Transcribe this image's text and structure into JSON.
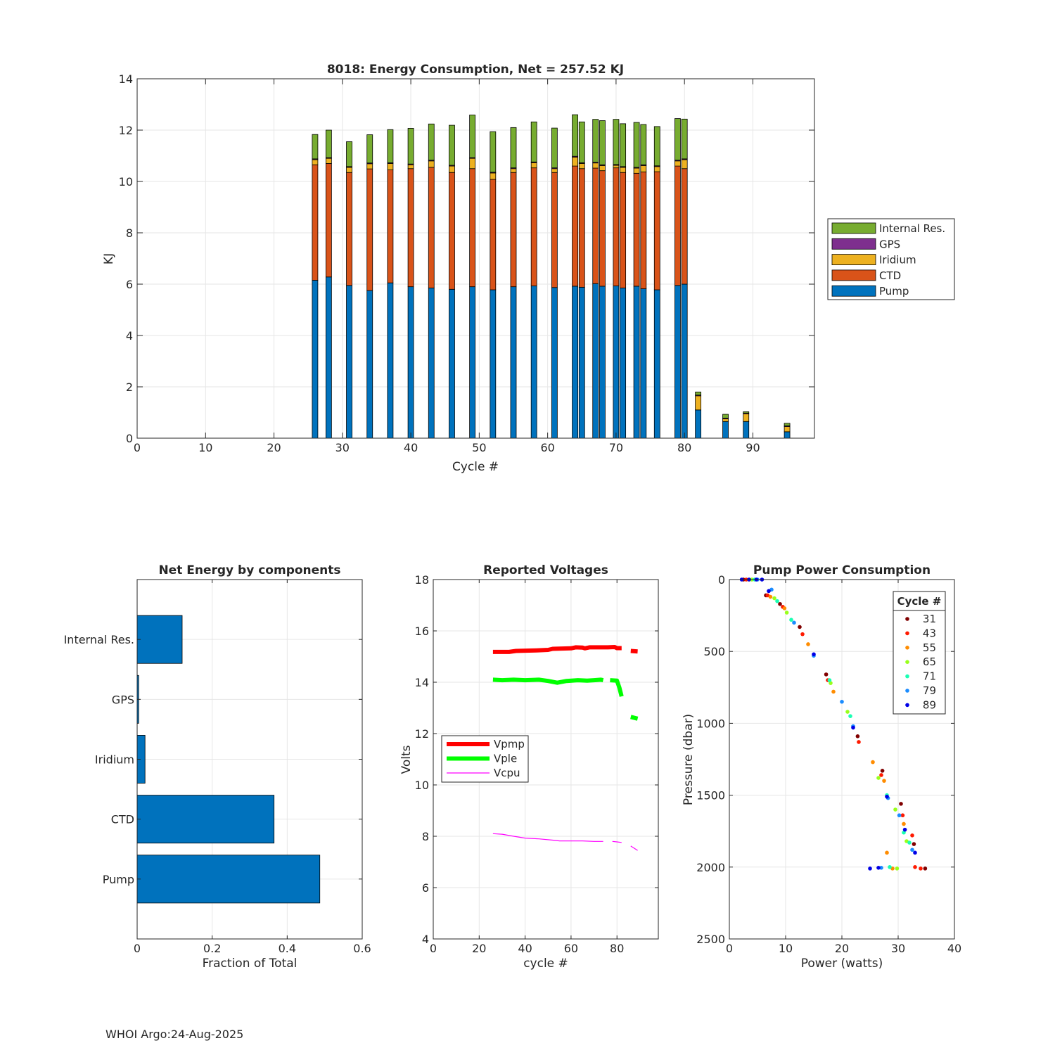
{
  "footer": "WHOI Argo:24-Aug-2025",
  "chart_data": [
    {
      "type": "bar",
      "stacked": true,
      "title": "8018: Energy Consumption,  Net = 257.52 KJ",
      "xlabel": "Cycle #",
      "ylabel": "KJ",
      "xlim": [
        0,
        99
      ],
      "ylim": [
        0,
        14
      ],
      "xticks": [
        0,
        10,
        20,
        30,
        40,
        50,
        60,
        70,
        80,
        90
      ],
      "yticks": [
        0,
        2,
        4,
        6,
        8,
        10,
        12,
        14
      ],
      "grid": true,
      "legend_position": "right",
      "legend_order": [
        "Internal Res.",
        "GPS",
        "Iridium",
        "CTD",
        "Pump"
      ],
      "cycles": [
        26,
        28,
        31,
        34,
        37,
        40,
        43,
        46,
        49,
        52,
        55,
        58,
        61,
        64,
        65,
        67,
        68,
        70,
        71,
        73,
        74,
        76,
        79,
        80,
        82,
        86,
        89,
        95
      ],
      "series": [
        {
          "name": "Pump",
          "color": "#0072BD",
          "values": [
            6.15,
            6.28,
            5.95,
            5.75,
            6.05,
            5.9,
            5.85,
            5.8,
            5.9,
            5.78,
            5.9,
            5.93,
            5.87,
            5.92,
            5.88,
            6.02,
            5.92,
            5.93,
            5.85,
            5.92,
            5.82,
            5.78,
            5.95,
            6.0,
            1.1,
            0.65,
            0.65,
            0.25
          ]
        },
        {
          "name": "CTD",
          "color": "#D95319",
          "values": [
            4.5,
            4.42,
            4.4,
            4.74,
            4.4,
            4.6,
            4.7,
            4.55,
            4.6,
            4.3,
            4.45,
            4.6,
            4.48,
            4.68,
            4.62,
            4.5,
            4.5,
            4.6,
            4.5,
            4.4,
            4.55,
            4.6,
            4.65,
            4.5,
            0.0,
            0.0,
            0.0,
            0.0
          ]
        },
        {
          "name": "Iridium",
          "color": "#EDB120",
          "values": [
            0.2,
            0.2,
            0.2,
            0.2,
            0.25,
            0.15,
            0.25,
            0.25,
            0.4,
            0.25,
            0.15,
            0.2,
            0.15,
            0.35,
            0.2,
            0.2,
            0.2,
            0.1,
            0.2,
            0.2,
            0.25,
            0.2,
            0.2,
            0.35,
            0.55,
            0.1,
            0.3,
            0.2
          ]
        },
        {
          "name": "GPS",
          "color": "#7E2F8E",
          "values": [
            0.03,
            0.03,
            0.03,
            0.03,
            0.03,
            0.03,
            0.03,
            0.03,
            0.03,
            0.03,
            0.03,
            0.03,
            0.03,
            0.03,
            0.03,
            0.03,
            0.03,
            0.03,
            0.03,
            0.03,
            0.03,
            0.03,
            0.03,
            0.03,
            0.03,
            0.03,
            0.03,
            0.03
          ]
        },
        {
          "name": "Internal Res.",
          "color": "#77AC30",
          "values": [
            0.95,
            1.07,
            0.97,
            1.1,
            1.29,
            1.39,
            1.41,
            1.56,
            1.66,
            1.58,
            1.57,
            1.56,
            1.55,
            1.62,
            1.59,
            1.67,
            1.72,
            1.76,
            1.67,
            1.75,
            1.57,
            1.53,
            1.62,
            1.55,
            0.12,
            0.15,
            0.05,
            0.1
          ]
        }
      ]
    },
    {
      "type": "bar",
      "orientation": "horizontal",
      "title": "Net Energy by components",
      "xlabel": "Fraction of Total",
      "xlim": [
        0,
        0.6
      ],
      "xticks": [
        0,
        0.2,
        0.4,
        0.6
      ],
      "grid": true,
      "color": "#0072BD",
      "categories": [
        "Internal Res.",
        "GPS",
        "Iridium",
        "CTD",
        "Pump"
      ],
      "values": [
        0.12,
        0.004,
        0.021,
        0.365,
        0.487
      ]
    },
    {
      "type": "line",
      "title": "Reported Voltages",
      "xlabel": "cycle #",
      "ylabel": "Volts",
      "xlim": [
        0,
        98
      ],
      "ylim": [
        4,
        18
      ],
      "xticks": [
        0,
        20,
        40,
        60,
        80
      ],
      "yticks": [
        4,
        6,
        8,
        10,
        12,
        14,
        16,
        18
      ],
      "grid": true,
      "legend_position": "middle-left",
      "series": [
        {
          "name": "Vpmp",
          "color": "#FF0000",
          "width": "thick",
          "segments": [
            [
              [
                26,
                15.18
              ],
              [
                33,
                15.18
              ],
              [
                36,
                15.22
              ],
              [
                45,
                15.24
              ],
              [
                50,
                15.26
              ],
              [
                52,
                15.3
              ],
              [
                60,
                15.32
              ],
              [
                62,
                15.36
              ],
              [
                65,
                15.35
              ],
              [
                66,
                15.32
              ],
              [
                68,
                15.36
              ],
              [
                72,
                15.36
              ],
              [
                76,
                15.36
              ],
              [
                79,
                15.37
              ],
              [
                80,
                15.33
              ],
              [
                82,
                15.33
              ]
            ],
            [
              [
                86,
                15.22
              ],
              [
                89,
                15.2
              ]
            ]
          ]
        },
        {
          "name": "Vple",
          "color": "#00FF00",
          "width": "thick",
          "segments": [
            [
              [
                26,
                14.1
              ],
              [
                30,
                14.08
              ],
              [
                35,
                14.1
              ],
              [
                40,
                14.08
              ],
              [
                46,
                14.1
              ],
              [
                50,
                14.05
              ],
              [
                54,
                13.98
              ],
              [
                58,
                14.05
              ],
              [
                63,
                14.08
              ],
              [
                67,
                14.06
              ],
              [
                70,
                14.08
              ],
              [
                73,
                14.1
              ],
              [
                74,
                14.08
              ]
            ],
            [
              [
                77,
                14.08
              ],
              [
                80,
                14.06
              ],
              [
                81,
                13.8
              ],
              [
                82,
                13.45
              ]
            ],
            [
              [
                86,
                12.65
              ],
              [
                89,
                12.58
              ]
            ]
          ]
        },
        {
          "name": "Vcpu",
          "color": "#FF00FF",
          "width": "thin",
          "segments": [
            [
              [
                26,
                8.1
              ],
              [
                30,
                8.08
              ],
              [
                35,
                8.0
              ],
              [
                40,
                7.93
              ],
              [
                46,
                7.9
              ],
              [
                52,
                7.85
              ],
              [
                55,
                7.82
              ],
              [
                60,
                7.82
              ],
              [
                65,
                7.82
              ],
              [
                70,
                7.8
              ],
              [
                73,
                7.8
              ],
              [
                74,
                7.8
              ]
            ],
            [
              [
                78,
                7.8
              ],
              [
                80,
                7.78
              ],
              [
                82,
                7.76
              ]
            ],
            [
              [
                86,
                7.62
              ],
              [
                89,
                7.45
              ]
            ]
          ]
        }
      ]
    },
    {
      "type": "scatter",
      "title": "Pump Power Consumption",
      "xlabel": "Power (watts)",
      "ylabel": "Pressure (dbar)",
      "xlim": [
        0,
        40
      ],
      "ylim": [
        0,
        2500
      ],
      "y_reversed": true,
      "xticks": [
        0,
        10,
        20,
        30,
        40
      ],
      "yticks": [
        0,
        500,
        1000,
        1500,
        2000,
        2500
      ],
      "grid": true,
      "legend_title": "Cycle #",
      "legend_position": "top-right",
      "series": [
        {
          "name": "31",
          "color": "#800000",
          "points": [
            [
              2.5,
              0
            ],
            [
              6.5,
              110
            ],
            [
              9.0,
              170
            ],
            [
              12.5,
              330
            ],
            [
              17.2,
              660
            ],
            [
              22.8,
              1090
            ],
            [
              27.2,
              1330
            ],
            [
              30.5,
              1560
            ],
            [
              32.8,
              1840
            ],
            [
              34.8,
              2010
            ]
          ]
        },
        {
          "name": "43",
          "color": "#FF1A00",
          "points": [
            [
              3.0,
              0
            ],
            [
              6.8,
              110
            ],
            [
              9.5,
              190
            ],
            [
              13.0,
              380
            ],
            [
              17.5,
              700
            ],
            [
              23.0,
              1130
            ],
            [
              27.0,
              1360
            ],
            [
              30.8,
              1640
            ],
            [
              32.5,
              1780
            ],
            [
              34.0,
              2010
            ],
            [
              33.0,
              2000
            ]
          ]
        },
        {
          "name": "55",
          "color": "#FF8C00",
          "points": [
            [
              3.5,
              0
            ],
            [
              7.3,
              120
            ],
            [
              9.8,
              200
            ],
            [
              14.0,
              450
            ],
            [
              18.5,
              780
            ],
            [
              25.5,
              1270
            ],
            [
              27.5,
              1400
            ],
            [
              31.0,
              1700
            ],
            [
              28.0,
              1900
            ],
            [
              29.0,
              2010
            ]
          ]
        },
        {
          "name": "65",
          "color": "#99FF1A",
          "points": [
            [
              4.0,
              0
            ],
            [
              8.0,
              130
            ],
            [
              10.2,
              230
            ],
            [
              18.0,
              720
            ],
            [
              21.0,
              920
            ],
            [
              26.5,
              1380
            ],
            [
              29.5,
              1600
            ],
            [
              31.5,
              1820
            ],
            [
              29.8,
              2010
            ]
          ]
        },
        {
          "name": "71",
          "color": "#1AFFB3",
          "points": [
            [
              4.5,
              0
            ],
            [
              8.5,
              150
            ],
            [
              11.0,
              280
            ],
            [
              17.8,
              700
            ],
            [
              21.5,
              950
            ],
            [
              28.0,
              1500
            ],
            [
              31.0,
              1760
            ],
            [
              32.0,
              1830
            ],
            [
              28.5,
              2000
            ]
          ]
        },
        {
          "name": "79",
          "color": "#1A8CFF",
          "points": [
            [
              5.0,
              0
            ],
            [
              7.5,
              70
            ],
            [
              11.5,
              300
            ],
            [
              15.0,
              530
            ],
            [
              20.0,
              850
            ],
            [
              22.0,
              1020
            ],
            [
              28.2,
              1520
            ],
            [
              30.2,
              1640
            ],
            [
              32.5,
              1880
            ],
            [
              27.0,
              2005
            ]
          ]
        },
        {
          "name": "89",
          "color": "#0000E6",
          "points": [
            [
              2.2,
              0
            ],
            [
              3.5,
              0
            ],
            [
              4.8,
              0
            ],
            [
              5.8,
              0
            ],
            [
              7.0,
              80
            ],
            [
              15.0,
              520
            ],
            [
              22.0,
              1030
            ],
            [
              28.0,
              1510
            ],
            [
              31.2,
              1740
            ],
            [
              33.0,
              1900
            ],
            [
              25.0,
              2010
            ],
            [
              26.5,
              2005
            ]
          ]
        }
      ]
    }
  ]
}
